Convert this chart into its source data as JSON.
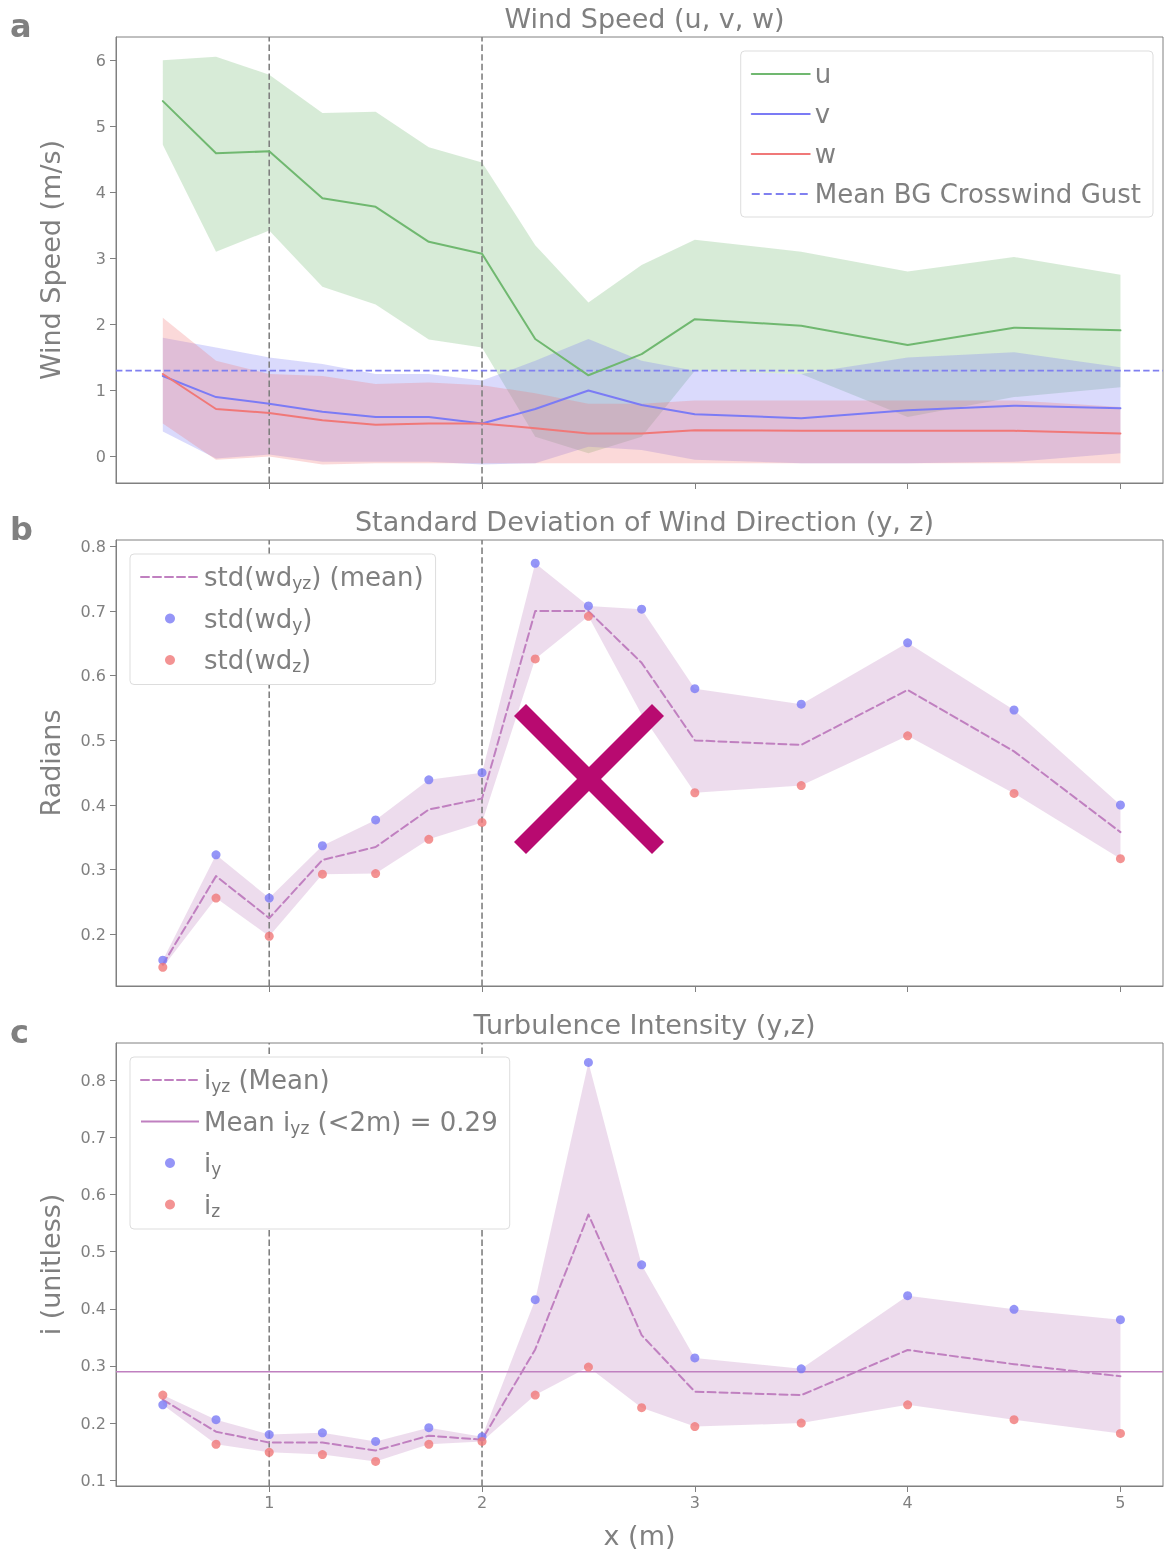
{
  "chart_data": [
    {
      "type": "line",
      "title": "Wind Speed (u, v, w)",
      "ylabel": "Wind Speed (m/s)",
      "annotations": [
        "a"
      ],
      "x": [
        0.5,
        0.75,
        1,
        1.25,
        1.5,
        1.75,
        2,
        2.25,
        2.5,
        2.75,
        3,
        3.5,
        4,
        4.5,
        5
      ],
      "xlim": [
        0.28,
        5.2
      ],
      "xticks": [
        1,
        2,
        3,
        4,
        5
      ],
      "ylim": [
        -0.4,
        6.35
      ],
      "yticks": [
        0,
        1,
        2,
        3,
        4,
        5,
        6
      ],
      "tick_labels": "y",
      "grid": false,
      "legend": "top right",
      "series": [
        {
          "name": "u",
          "color": "#70b870",
          "marker": "none",
          "line_style": "solid",
          "values": [
            5.38,
            4.59,
            4.62,
            3.91,
            3.78,
            3.25,
            3.07,
            1.78,
            1.23,
            1.55,
            2.08,
            1.98,
            1.69,
            1.95,
            1.91
          ],
          "lower": [
            4.72,
            3.1,
            3.42,
            2.57,
            2.3,
            1.77,
            1.65,
            0.3,
            0.05,
            0.3,
            1.3,
            1.25,
            0.6,
            0.9,
            1.05
          ],
          "upper": [
            6.0,
            6.05,
            5.78,
            5.2,
            5.22,
            4.68,
            4.45,
            3.2,
            2.33,
            2.9,
            3.28,
            3.1,
            2.8,
            3.02,
            2.75
          ]
        },
        {
          "name": "v",
          "color": "#7b7bf5",
          "marker": "none",
          "line_style": "solid",
          "values": [
            1.22,
            0.9,
            0.8,
            0.68,
            0.6,
            0.6,
            0.5,
            0.72,
            1.0,
            0.78,
            0.64,
            0.58,
            0.7,
            0.77,
            0.73
          ],
          "lower": [
            0.38,
            -0.03,
            0.03,
            -0.08,
            -0.08,
            -0.08,
            -0.12,
            -0.1,
            0.15,
            0.1,
            -0.05,
            -0.1,
            -0.1,
            -0.08,
            0.05
          ],
          "upper": [
            1.8,
            1.65,
            1.5,
            1.4,
            1.25,
            1.25,
            1.15,
            1.45,
            1.78,
            1.45,
            1.3,
            1.25,
            1.5,
            1.58,
            1.35
          ]
        },
        {
          "name": "w",
          "color": "#f07878",
          "marker": "none",
          "line_style": "solid",
          "values": [
            1.25,
            0.72,
            0.66,
            0.55,
            0.48,
            0.5,
            0.5,
            0.43,
            0.35,
            0.35,
            0.4,
            0.39,
            0.39,
            0.39,
            0.35
          ],
          "lower": [
            0.5,
            -0.05,
            0.0,
            -0.12,
            -0.1,
            -0.1,
            -0.1,
            -0.1,
            -0.1,
            -0.1,
            -0.1,
            -0.1,
            -0.1,
            -0.1,
            -0.1
          ],
          "upper": [
            2.1,
            1.45,
            1.25,
            1.22,
            1.1,
            1.12,
            1.08,
            0.96,
            0.8,
            0.8,
            0.85,
            0.85,
            0.85,
            0.85,
            0.75
          ]
        }
      ],
      "ref_lines": [
        {
          "axis": "x",
          "value": 1,
          "color": "#808080",
          "line_style": "dashed"
        },
        {
          "axis": "x",
          "value": 2,
          "color": "#808080",
          "line_style": "dashed"
        },
        {
          "axis": "y",
          "value": 1.3,
          "label": "Mean BG Crosswind Gust",
          "color": "#8080f0",
          "line_style": "dashed"
        }
      ]
    },
    {
      "type": "line",
      "title": "Standard Deviation of Wind Direction (y, z)",
      "ylabel": "Radians",
      "annotations": [
        "b"
      ],
      "x": [
        0.5,
        0.75,
        1,
        1.25,
        1.5,
        1.75,
        2,
        2.25,
        2.5,
        2.75,
        3,
        3.5,
        4,
        4.5,
        5
      ],
      "xlim": [
        0.28,
        5.2
      ],
      "xticks": [
        1,
        2,
        3,
        4,
        5
      ],
      "ylim": [
        0.12,
        0.81
      ],
      "yticks": [
        0.2,
        0.3,
        0.4,
        0.5,
        0.6,
        0.7,
        0.8
      ],
      "tick_labels": "y",
      "grid": false,
      "legend": "top left",
      "series": [
        {
          "name": "std(wd$_{yz}$) (mean)",
          "type": "line",
          "color": "#c080c0",
          "marker": "none",
          "line_style": "dashed",
          "values": [
            0.153,
            0.29,
            0.225,
            0.315,
            0.335,
            0.393,
            0.41,
            0.7,
            0.7,
            0.62,
            0.5,
            0.493,
            0.578,
            0.483,
            0.358
          ],
          "lower": [
            0.149,
            0.256,
            0.197,
            0.293,
            0.294,
            0.347,
            0.373,
            0.626,
            0.692,
            0.54,
            0.419,
            0.43,
            0.507,
            0.418,
            0.317
          ],
          "upper": [
            0.16,
            0.323,
            0.256,
            0.337,
            0.377,
            0.439,
            0.45,
            0.774,
            0.708,
            0.703,
            0.58,
            0.556,
            0.651,
            0.547,
            0.4
          ]
        },
        {
          "name": "std(wd$_{y}$)",
          "type": "scatter",
          "color": "#7b7bf5",
          "marker": "circle",
          "values": [
            0.16,
            0.323,
            0.256,
            0.337,
            0.377,
            0.439,
            0.45,
            0.774,
            0.708,
            0.703,
            0.58,
            0.556,
            0.651,
            0.547,
            0.4
          ]
        },
        {
          "name": "std(wd$_{z}$)",
          "type": "scatter",
          "color": "#f07878",
          "marker": "circle",
          "values": [
            0.149,
            0.256,
            0.197,
            0.293,
            0.294,
            0.347,
            0.373,
            0.626,
            0.692,
            null,
            0.419,
            0.43,
            0.507,
            0.418,
            0.317
          ]
        }
      ],
      "ref_lines": [
        {
          "axis": "x",
          "value": 1,
          "color": "#808080",
          "line_style": "dashed"
        },
        {
          "axis": "x",
          "value": 2,
          "color": "#808080",
          "line_style": "dashed"
        }
      ]
    },
    {
      "type": "line",
      "title": "Turbulence Intensity (y,z)",
      "xlabel": "x (m)",
      "ylabel": "i (unitless)",
      "annotations": [
        "c"
      ],
      "x": [
        0.5,
        0.75,
        1,
        1.25,
        1.5,
        1.75,
        2,
        2.25,
        2.5,
        2.75,
        3,
        3.5,
        4,
        4.5,
        5
      ],
      "xlim": [
        0.28,
        5.2
      ],
      "xticks": [
        1,
        2,
        3,
        4,
        5
      ],
      "ylim": [
        0.09,
        0.865
      ],
      "yticks": [
        0.1,
        0.2,
        0.3,
        0.4,
        0.5,
        0.6,
        0.7,
        0.8
      ],
      "grid": false,
      "legend": "top left",
      "series": [
        {
          "name": "i$_{yz}$ (Mean)",
          "type": "line",
          "color": "#c080c0",
          "marker": "none",
          "line_style": "dashed",
          "values": [
            0.241,
            0.185,
            0.166,
            0.166,
            0.152,
            0.178,
            0.171,
            0.329,
            0.565,
            0.354,
            0.255,
            0.249,
            0.328,
            0.303,
            0.282
          ],
          "lower": [
            0.232,
            0.163,
            0.149,
            0.145,
            0.133,
            0.163,
            0.168,
            0.249,
            0.298,
            0.227,
            0.194,
            0.2,
            0.232,
            0.206,
            0.182
          ],
          "upper": [
            0.249,
            0.206,
            0.18,
            0.183,
            0.168,
            0.192,
            0.176,
            0.416,
            0.831,
            0.477,
            0.314,
            0.295,
            0.423,
            0.399,
            0.381
          ]
        },
        {
          "name": "i$_{y}$",
          "type": "scatter",
          "color": "#7b7bf5",
          "marker": "circle",
          "values": [
            0.232,
            0.206,
            0.18,
            0.183,
            0.168,
            0.192,
            0.176,
            0.416,
            0.831,
            0.477,
            0.314,
            0.295,
            0.423,
            0.399,
            0.381
          ]
        },
        {
          "name": "i$_{z}$",
          "type": "scatter",
          "color": "#f07878",
          "marker": "circle",
          "values": [
            0.249,
            0.163,
            0.149,
            0.145,
            0.133,
            0.163,
            0.168,
            0.249,
            0.298,
            0.227,
            0.194,
            0.2,
            0.232,
            0.206,
            0.182
          ]
        }
      ],
      "ref_lines": [
        {
          "axis": "x",
          "value": 1,
          "color": "#808080",
          "line_style": "dashed"
        },
        {
          "axis": "x",
          "value": 2,
          "color": "#808080",
          "line_style": "dashed"
        },
        {
          "axis": "y",
          "value": 0.29,
          "label": "Mean i$_{yz}$ (<2m) = 0.29",
          "color": "#c080c0",
          "line_style": "solid"
        }
      ]
    }
  ]
}
